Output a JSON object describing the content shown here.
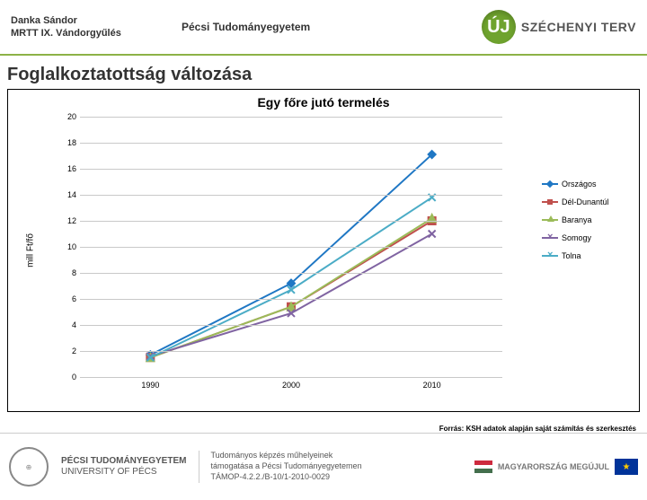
{
  "header": {
    "author_line1": "Danka Sándor",
    "author_line2": "MRTT IX. Vándorgyűlés",
    "university": "Pécsi Tudományegyetem",
    "szechenyi_arrow": "ÚJ",
    "szechenyi_text": "SZÉCHENYI TERV"
  },
  "section_title": "Foglalkoztatottság változása",
  "chart": {
    "type": "line",
    "title": "Egy főre jutó termelés",
    "y_label": "mill Ft/fő",
    "background_color": "#ffffff",
    "grid_color": "#c9c9c9",
    "font_size_title": 14,
    "font_size_axis": 10,
    "ylim": [
      0,
      20
    ],
    "ytick_step": 2,
    "x_categories": [
      "1990",
      "2000",
      "2010"
    ],
    "series": [
      {
        "name": "Országos",
        "color": "#1f77c4",
        "marker": "diamond",
        "values": [
          1.7,
          7.2,
          17.1
        ]
      },
      {
        "name": "Dél-Dunantúl",
        "color": "#c0504d",
        "marker": "square",
        "values": [
          1.5,
          5.4,
          12.0
        ]
      },
      {
        "name": "Baranya",
        "color": "#9bbb59",
        "marker": "triangle",
        "values": [
          1.5,
          5.4,
          12.2
        ]
      },
      {
        "name": "Somogy",
        "color": "#8064a2",
        "marker": "x",
        "values": [
          1.6,
          4.9,
          11.0
        ]
      },
      {
        "name": "Tolna",
        "color": "#4bacc6",
        "marker": "x",
        "values": [
          1.5,
          6.7,
          13.8
        ]
      }
    ]
  },
  "source_note": "Forrás: KSH adatok alapján saját számítás és szerkesztés",
  "footer": {
    "pte_line1": "PÉCSI TUDOMÁNYEGYETEM",
    "pte_line2": "UNIVERSITY OF PÉCS",
    "tamop_line1": "Tudományos képzés műhelyeinek",
    "tamop_line2": "támogatása a Pécsi Tudományegyetemen",
    "tamop_line3": "TÁMOP-4.2.2./B-10/1-2010-0029",
    "mo_text": "MAGYARORSZÁG MEGÚJUL"
  }
}
